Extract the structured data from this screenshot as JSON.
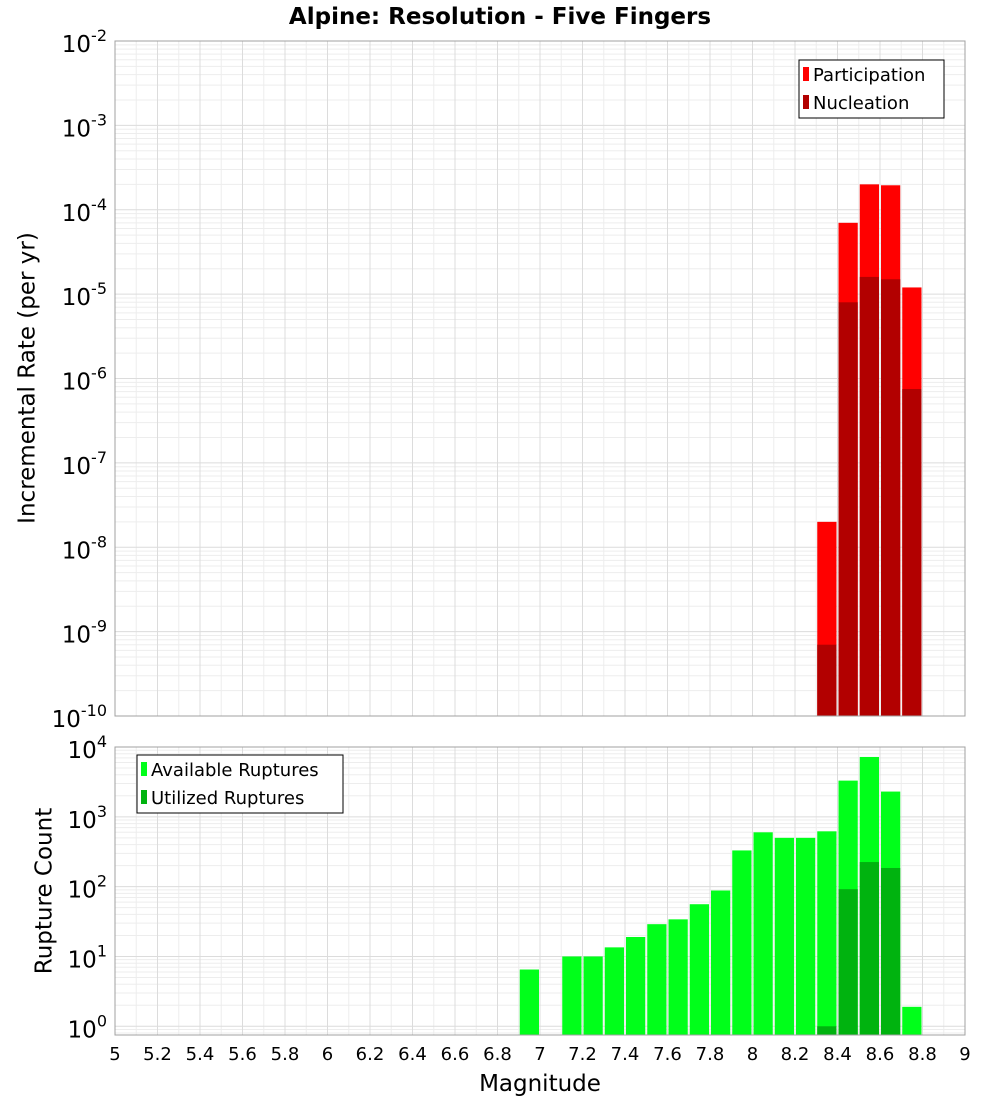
{
  "title": "Alpine: Resolution - Five Fingers",
  "colors": {
    "participation": "#ff0000",
    "nucleation": "#b20000",
    "available": "#00ff1a",
    "utilized": "#00b30f",
    "grid_major": "#dcdcdc",
    "grid_minor": "#ededed",
    "frame": "#a0a0a0"
  },
  "chart_data": [
    {
      "type": "bar",
      "name": "rate-panel",
      "ylabel": "Incremental Rate (per yr)",
      "y_scale": "log",
      "ylim": [
        1e-10,
        0.01
      ],
      "xlim": [
        5,
        9
      ],
      "grid": true,
      "legend_placement": "top-right",
      "y_ticks": [
        {
          "base": "10",
          "exp": "-10",
          "value": 1e-10
        },
        {
          "base": "10",
          "exp": "-9",
          "value": 1e-09
        },
        {
          "base": "10",
          "exp": "-8",
          "value": 1e-08
        },
        {
          "base": "10",
          "exp": "-7",
          "value": 1e-07
        },
        {
          "base": "10",
          "exp": "-6",
          "value": 1e-06
        },
        {
          "base": "10",
          "exp": "-5",
          "value": 1e-05
        },
        {
          "base": "10",
          "exp": "-4",
          "value": 0.0001
        },
        {
          "base": "10",
          "exp": "-3",
          "value": 0.001
        },
        {
          "base": "10",
          "exp": "-2",
          "value": 0.01
        }
      ],
      "x": [
        8.35,
        8.45,
        8.55,
        8.65,
        8.75
      ],
      "series": [
        {
          "name": "Participation",
          "color_key": "participation",
          "values": [
            2e-08,
            7e-05,
            0.0002,
            0.000195,
            1.2e-05
          ]
        },
        {
          "name": "Nucleation",
          "color_key": "nucleation",
          "values": [
            7e-10,
            8e-06,
            1.6e-05,
            1.5e-05,
            7.5e-07
          ]
        }
      ]
    },
    {
      "type": "bar",
      "name": "count-panel",
      "ylabel": "Rupture Count",
      "xlabel": "Magnitude",
      "y_scale": "log",
      "ylim": [
        0.75,
        10000
      ],
      "xlim": [
        5,
        9
      ],
      "grid": true,
      "legend_placement": "top-left",
      "y_ticks": [
        {
          "base": "10",
          "exp": "0",
          "value": 1
        },
        {
          "base": "10",
          "exp": "1",
          "value": 10
        },
        {
          "base": "10",
          "exp": "2",
          "value": 100
        },
        {
          "base": "10",
          "exp": "3",
          "value": 1000
        },
        {
          "base": "10",
          "exp": "4",
          "value": 10000
        }
      ],
      "x_ticks": [
        "5",
        "5.2",
        "5.4",
        "5.6",
        "5.8",
        "6",
        "6.2",
        "6.4",
        "6.6",
        "6.8",
        "7",
        "7.2",
        "7.4",
        "7.6",
        "7.8",
        "8",
        "8.2",
        "8.4",
        "8.6",
        "8.8",
        "9"
      ],
      "x": [
        6.95,
        7.15,
        7.25,
        7.35,
        7.45,
        7.55,
        7.65,
        7.75,
        7.85,
        7.95,
        8.05,
        8.15,
        8.25,
        8.35,
        8.45,
        8.55,
        8.65,
        8.75
      ],
      "series": [
        {
          "name": "Available Ruptures",
          "color_key": "available",
          "values": [
            6.5,
            10,
            10,
            13.5,
            19,
            29,
            34,
            56,
            88,
            330,
            600,
            500,
            500,
            620,
            3300,
            7200,
            2300,
            1.9
          ]
        },
        {
          "name": "Utilized Ruptures",
          "color_key": "utilized",
          "values": [
            null,
            null,
            null,
            null,
            null,
            null,
            null,
            null,
            null,
            null,
            null,
            null,
            null,
            1,
            92,
            225,
            185,
            null
          ]
        }
      ]
    }
  ]
}
